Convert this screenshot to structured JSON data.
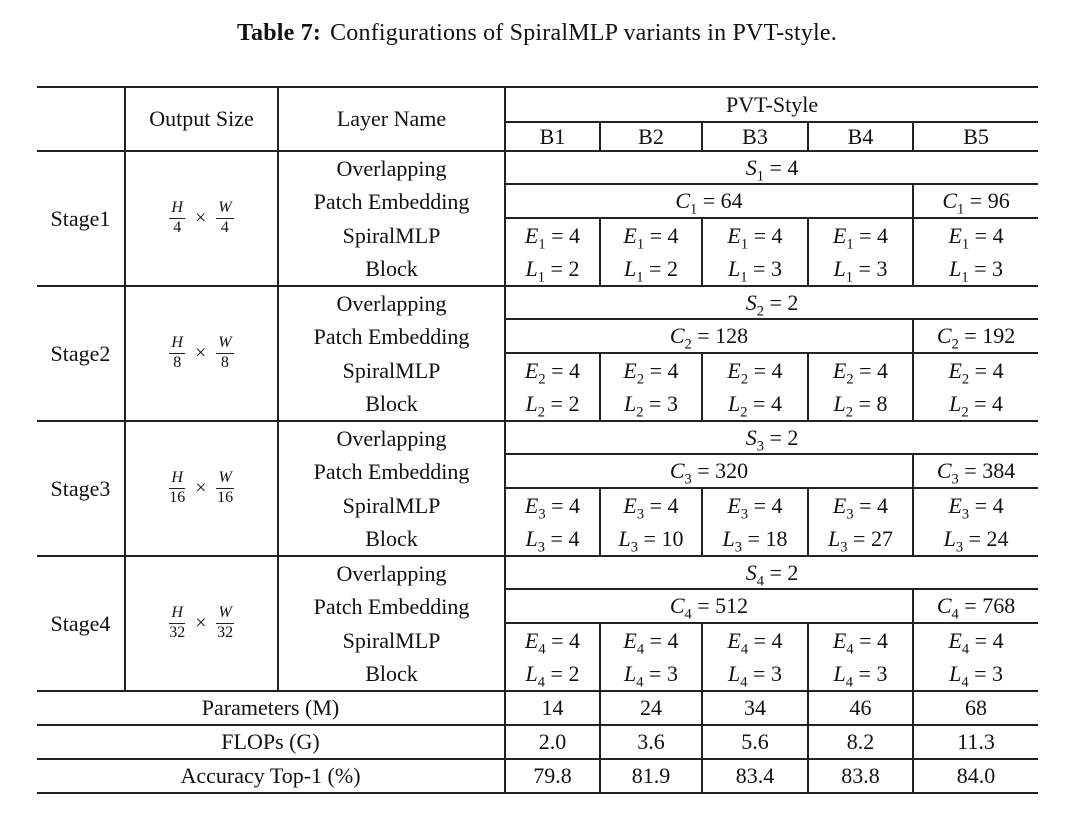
{
  "title": {
    "label": "Table 7:",
    "text": "Configurations of SpiralMLP variants in PVT-style."
  },
  "symbols": {
    "eq": "=",
    "times": "×"
  },
  "header": {
    "output_size": "Output Size",
    "layer_name": "Layer Name",
    "group": "PVT-Style",
    "variants": [
      "B1",
      "B2",
      "B3",
      "B4",
      "B5"
    ]
  },
  "stages": [
    {
      "name": "Stage1",
      "output": {
        "num1": "H",
        "den1": "4",
        "num2": "W",
        "den2": "4"
      },
      "layer_patch": [
        "Overlapping",
        "Patch Embedding"
      ],
      "layer_block": [
        "SpiralMLP",
        "Block"
      ],
      "s": {
        "var": "S",
        "sub": "1",
        "value": "4"
      },
      "c_main": {
        "var": "C",
        "sub": "1",
        "value": "64"
      },
      "c_b5": {
        "var": "C",
        "sub": "1",
        "value": "96"
      },
      "e_var": "E",
      "l_var": "L",
      "sub": "1",
      "e_values": [
        "4",
        "4",
        "4",
        "4",
        "4"
      ],
      "l_values": [
        "2",
        "2",
        "3",
        "3",
        "3"
      ]
    },
    {
      "name": "Stage2",
      "output": {
        "num1": "H",
        "den1": "8",
        "num2": "W",
        "den2": "8"
      },
      "layer_patch": [
        "Overlapping",
        "Patch Embedding"
      ],
      "layer_block": [
        "SpiralMLP",
        "Block"
      ],
      "s": {
        "var": "S",
        "sub": "2",
        "value": "2"
      },
      "c_main": {
        "var": "C",
        "sub": "2",
        "value": "128"
      },
      "c_b5": {
        "var": "C",
        "sub": "2",
        "value": "192"
      },
      "e_var": "E",
      "l_var": "L",
      "sub": "2",
      "e_values": [
        "4",
        "4",
        "4",
        "4",
        "4"
      ],
      "l_values": [
        "2",
        "3",
        "4",
        "8",
        "4"
      ]
    },
    {
      "name": "Stage3",
      "output": {
        "num1": "H",
        "den1": "16",
        "num2": "W",
        "den2": "16"
      },
      "layer_patch": [
        "Overlapping",
        "Patch Embedding"
      ],
      "layer_block": [
        "SpiralMLP",
        "Block"
      ],
      "s": {
        "var": "S",
        "sub": "3",
        "value": "2"
      },
      "c_main": {
        "var": "C",
        "sub": "3",
        "value": "320"
      },
      "c_b5": {
        "var": "C",
        "sub": "3",
        "value": "384"
      },
      "e_var": "E",
      "l_var": "L",
      "sub": "3",
      "e_values": [
        "4",
        "4",
        "4",
        "4",
        "4"
      ],
      "l_values": [
        "4",
        "10",
        "18",
        "27",
        "24"
      ]
    },
    {
      "name": "Stage4",
      "output": {
        "num1": "H",
        "den1": "32",
        "num2": "W",
        "den2": "32"
      },
      "layer_patch": [
        "Overlapping",
        "Patch Embedding"
      ],
      "layer_block": [
        "SpiralMLP",
        "Block"
      ],
      "s": {
        "var": "S",
        "sub": "4",
        "value": "2"
      },
      "c_main": {
        "var": "C",
        "sub": "4",
        "value": "512"
      },
      "c_b5": {
        "var": "C",
        "sub": "4",
        "value": "768"
      },
      "e_var": "E",
      "l_var": "L",
      "sub": "4",
      "e_values": [
        "4",
        "4",
        "4",
        "4",
        "4"
      ],
      "l_values": [
        "2",
        "3",
        "3",
        "3",
        "3"
      ]
    }
  ],
  "footer": [
    {
      "label": "Parameters (M)",
      "values": [
        "14",
        "24",
        "34",
        "46",
        "68"
      ]
    },
    {
      "label": "FLOPs (G)",
      "values": [
        "2.0",
        "3.6",
        "5.6",
        "8.2",
        "11.3"
      ]
    },
    {
      "label": "Accuracy Top-1 (%)",
      "values": [
        "79.8",
        "81.9",
        "83.4",
        "83.8",
        "84.0"
      ]
    }
  ],
  "chart_data": {
    "type": "table",
    "title": "Table 7: Configurations of SpiralMLP variants in PVT-style.",
    "columns": [
      "",
      "Output Size",
      "Layer Name",
      "B1",
      "B2",
      "B3",
      "B4",
      "B5"
    ],
    "rows": [
      [
        "Stage1",
        "H/4 x W/4",
        "Overlapping Patch Embedding: S1",
        "S1=4",
        "S1=4",
        "S1=4",
        "S1=4",
        "S1=4"
      ],
      [
        "Stage1",
        "H/4 x W/4",
        "Overlapping Patch Embedding: C1",
        "C1=64",
        "C1=64",
        "C1=64",
        "C1=64",
        "C1=96"
      ],
      [
        "Stage1",
        "H/4 x W/4",
        "SpiralMLP Block: E1",
        "E1=4",
        "E1=4",
        "E1=4",
        "E1=4",
        "E1=4"
      ],
      [
        "Stage1",
        "H/4 x W/4",
        "SpiralMLP Block: L1",
        "L1=2",
        "L1=2",
        "L1=3",
        "L1=3",
        "L1=3"
      ],
      [
        "Stage2",
        "H/8 x W/8",
        "Overlapping Patch Embedding: S2",
        "S2=2",
        "S2=2",
        "S2=2",
        "S2=2",
        "S2=2"
      ],
      [
        "Stage2",
        "H/8 x W/8",
        "Overlapping Patch Embedding: C2",
        "C2=128",
        "C2=128",
        "C2=128",
        "C2=128",
        "C2=192"
      ],
      [
        "Stage2",
        "H/8 x W/8",
        "SpiralMLP Block: E2",
        "E2=4",
        "E2=4",
        "E2=4",
        "E2=4",
        "E2=4"
      ],
      [
        "Stage2",
        "H/8 x W/8",
        "SpiralMLP Block: L2",
        "L2=2",
        "L2=3",
        "L2=4",
        "L2=8",
        "L2=4"
      ],
      [
        "Stage3",
        "H/16 x W/16",
        "Overlapping Patch Embedding: S3",
        "S3=2",
        "S3=2",
        "S3=2",
        "S3=2",
        "S3=2"
      ],
      [
        "Stage3",
        "H/16 x W/16",
        "Overlapping Patch Embedding: C3",
        "C3=320",
        "C3=320",
        "C3=320",
        "C3=320",
        "C3=384"
      ],
      [
        "Stage3",
        "H/16 x W/16",
        "SpiralMLP Block: E3",
        "E3=4",
        "E3=4",
        "E3=4",
        "E3=4",
        "E3=4"
      ],
      [
        "Stage3",
        "H/16 x W/16",
        "SpiralMLP Block: L3",
        "L3=4",
        "L3=10",
        "L3=18",
        "L3=27",
        "L3=24"
      ],
      [
        "Stage4",
        "H/32 x W/32",
        "Overlapping Patch Embedding: S4",
        "S4=2",
        "S4=2",
        "S4=2",
        "S4=2",
        "S4=2"
      ],
      [
        "Stage4",
        "H/32 x W/32",
        "Overlapping Patch Embedding: C4",
        "C4=512",
        "C4=512",
        "C4=512",
        "C4=512",
        "C4=768"
      ],
      [
        "Stage4",
        "H/32 x W/32",
        "SpiralMLP Block: E4",
        "E4=4",
        "E4=4",
        "E4=4",
        "E4=4",
        "E4=4"
      ],
      [
        "Stage4",
        "H/32 x W/32",
        "SpiralMLP Block: L4",
        "L4=2",
        "L4=3",
        "L4=3",
        "L4=3",
        "L4=3"
      ],
      [
        "Parameters (M)",
        "",
        "",
        "14",
        "24",
        "34",
        "46",
        "68"
      ],
      [
        "FLOPs (G)",
        "",
        "",
        "2.0",
        "3.6",
        "5.6",
        "8.2",
        "11.3"
      ],
      [
        "Accuracy Top-1 (%)",
        "",
        "",
        "79.8",
        "81.9",
        "83.4",
        "83.8",
        "84.0"
      ]
    ]
  }
}
